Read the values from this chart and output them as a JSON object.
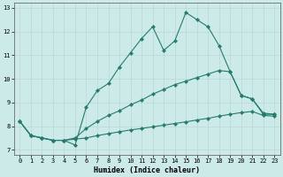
{
  "xlabel": "Humidex (Indice chaleur)",
  "xlim": [
    -0.5,
    23.5
  ],
  "ylim": [
    6.8,
    13.2
  ],
  "yticks": [
    7,
    8,
    9,
    10,
    11,
    12,
    13
  ],
  "xticks": [
    0,
    1,
    2,
    3,
    4,
    5,
    6,
    7,
    8,
    9,
    10,
    11,
    12,
    13,
    14,
    15,
    16,
    17,
    18,
    19,
    20,
    21,
    22,
    23
  ],
  "background_color": "#cceae8",
  "line_color": "#267b6e",
  "line_a_x": [
    0,
    1,
    2,
    3,
    4,
    5,
    6,
    7,
    8,
    9,
    10,
    11,
    12,
    13,
    14,
    15,
    16,
    17,
    18,
    19,
    20,
    21,
    22,
    23
  ],
  "line_a_y": [
    8.2,
    7.6,
    7.5,
    7.4,
    7.4,
    7.2,
    8.8,
    9.5,
    9.8,
    10.5,
    11.1,
    11.7,
    12.2,
    11.2,
    11.6,
    12.8,
    12.5,
    12.2,
    11.4,
    10.3,
    9.3,
    9.15,
    8.5,
    8.5
  ],
  "line_b_x": [
    0,
    1,
    2,
    3,
    4,
    5,
    6,
    7,
    8,
    9,
    10,
    11,
    12,
    13,
    14,
    15,
    16,
    17,
    18,
    19,
    20,
    21,
    22,
    23
  ],
  "line_b_y": [
    8.2,
    7.6,
    7.5,
    7.4,
    7.4,
    7.5,
    7.9,
    8.2,
    8.45,
    8.65,
    8.9,
    9.1,
    9.35,
    9.55,
    9.75,
    9.9,
    10.05,
    10.2,
    10.35,
    10.3,
    9.3,
    9.15,
    8.55,
    8.5
  ],
  "line_c_x": [
    0,
    1,
    2,
    3,
    4,
    5,
    6,
    7,
    8,
    9,
    10,
    11,
    12,
    13,
    14,
    15,
    16,
    17,
    18,
    19,
    20,
    21,
    22,
    23
  ],
  "line_c_y": [
    8.2,
    7.6,
    7.5,
    7.4,
    7.4,
    7.45,
    7.5,
    7.6,
    7.68,
    7.76,
    7.84,
    7.9,
    7.97,
    8.04,
    8.11,
    8.18,
    8.26,
    8.33,
    8.42,
    8.5,
    8.57,
    8.62,
    8.45,
    8.42
  ]
}
